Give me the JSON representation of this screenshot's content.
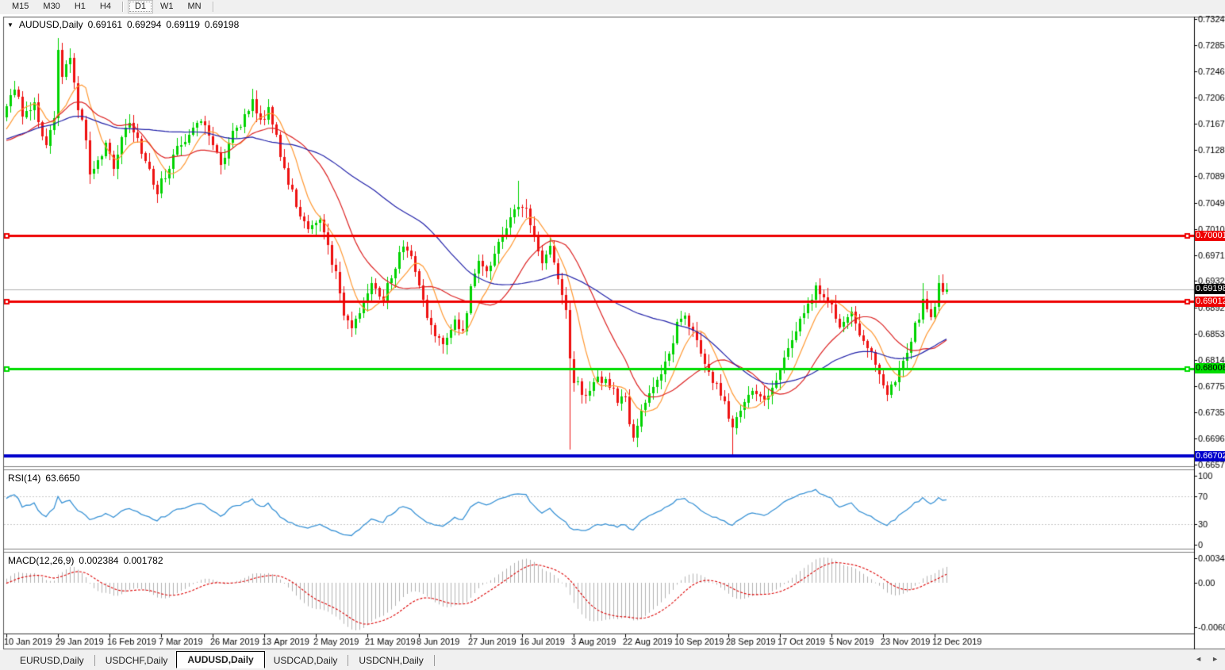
{
  "toolbar": {
    "buttons": [
      {
        "label": "M15",
        "active": false
      },
      {
        "label": "M30",
        "active": false
      },
      {
        "label": "H1",
        "active": false
      },
      {
        "label": "H4",
        "active": false
      },
      {
        "label": "D1",
        "active": true
      },
      {
        "label": "W1",
        "active": false
      },
      {
        "label": "MN",
        "active": false
      }
    ]
  },
  "chart": {
    "title": {
      "symbol_period": "AUDUSD,Daily",
      "open": "0.69161",
      "high": "0.69294",
      "low": "0.69119",
      "close": "0.69198"
    }
  },
  "price_axis": {
    "ticks": [
      "0.73240",
      "0.72850",
      "0.72460",
      "0.72060",
      "0.71670",
      "0.71280",
      "0.70890",
      "0.70490",
      "0.70100",
      "0.69710",
      "0.69320",
      "0.68920",
      "0.68530",
      "0.68140",
      "0.67750",
      "0.67350",
      "0.66960",
      "0.66570"
    ]
  },
  "x_axis": {
    "dates": [
      "10 Jan 2019",
      "29 Jan 2019",
      "16 Feb 2019",
      "7 Mar 2019",
      "26 Mar 2019",
      "13 Apr 2019",
      "2 May 2019",
      "21 May 2019",
      "8 Jun 2019",
      "27 Jun 2019",
      "16 Jul 2019",
      "3 Aug 2019",
      "22 Aug 2019",
      "10 Sep 2019",
      "28 Sep 2019",
      "17 Oct 2019",
      "5 Nov 2019",
      "23 Nov 2019",
      "12 Dec 2019"
    ]
  },
  "price_lines": [
    {
      "id": "resistance-upper",
      "price": "0.70001",
      "line_color": "#ee0000",
      "badge_bg": "#ee0000",
      "badge_fg": "#ffffff"
    },
    {
      "id": "current-price",
      "price": "0.69198",
      "line_color": "#b0b0b0",
      "badge_bg": "#000000",
      "badge_fg": "#ffffff"
    },
    {
      "id": "resistance-lower",
      "price": "0.69012",
      "line_color": "#ee0000",
      "badge_bg": "#ee0000",
      "badge_fg": "#ffffff"
    },
    {
      "id": "support",
      "price": "0.68008",
      "line_color": "#00dd00",
      "badge_bg": "#00dd00",
      "badge_fg": "#000000"
    },
    {
      "id": "year-low",
      "price": "0.66702",
      "line_color": "#0000cc",
      "badge_bg": "#0000cc",
      "badge_fg": "#ffffff"
    }
  ],
  "rsi": {
    "name": "RSI(14)",
    "value": "63.6650",
    "scale": [
      100,
      70,
      30,
      0
    ],
    "dashed_levels": [
      70,
      30
    ],
    "line_color": "#3a93d6"
  },
  "macd": {
    "name": "MACD(12,26,9)",
    "main_value": "0.002384",
    "signal_value": "0.001782",
    "scale": [
      {
        "label": "0.003421",
        "value": 0.003421
      },
      {
        "label": "0.00",
        "value": 0
      },
      {
        "label": "-0.006069",
        "value": -0.006069
      }
    ],
    "hist_color": "#b2b2b2",
    "signal_color": "#dd0000"
  },
  "tabs": {
    "items": [
      {
        "label": "EURUSD,Daily",
        "active": false
      },
      {
        "label": "USDCHF,Daily",
        "active": false
      },
      {
        "label": "AUDUSD,Daily",
        "active": true
      },
      {
        "label": "USDCAD,Daily",
        "active": false
      },
      {
        "label": "USDCNH,Daily",
        "active": false
      }
    ],
    "scroll_left_icon": "◄",
    "scroll_right_icon": "►"
  },
  "colors": {
    "candle_up": "#00d300",
    "candle_down": "#ee1111",
    "ma_fast": "#ff9933",
    "ma_mid": "#dd2222",
    "ma_slow": "#2323aa",
    "pane_bg": "#ffffff",
    "border": "#555555",
    "axis_line": "#000000",
    "grid_dash": "#c8c8c8"
  },
  "chart_data": {
    "type": "candlestick",
    "symbol": "AUDUSD",
    "timeframe": "Daily",
    "visible_range": {
      "first_label": "10 Jan 2019",
      "last_label": "12 Dec 2019"
    },
    "current_candle": {
      "open": 0.69161,
      "high": 0.69294,
      "low": 0.69119,
      "close": 0.69198
    },
    "rsi_current": 63.665,
    "macd_current": {
      "main": 0.002384,
      "signal": 0.001782
    },
    "horizontal_levels": [
      0.70001,
      0.69198,
      0.69012,
      0.68008,
      0.66702
    ],
    "moving_averages": [
      {
        "name": "fast",
        "period": 8,
        "color": "#ff9933"
      },
      {
        "name": "mid",
        "period": 20,
        "color": "#dd2222"
      },
      {
        "name": "slow",
        "period": 50,
        "color": "#2323aa"
      }
    ],
    "waypoints": [
      [
        -60,
        0.708
      ],
      [
        -50,
        0.713
      ],
      [
        -42,
        0.706
      ],
      [
        -34,
        0.715
      ],
      [
        -26,
        0.723
      ],
      [
        -18,
        0.716
      ],
      [
        -12,
        0.71
      ],
      [
        -6,
        0.714
      ],
      [
        -1,
        0.717
      ],
      [
        0,
        0.719
      ],
      [
        2,
        0.722
      ],
      [
        4,
        0.718
      ],
      [
        7,
        0.72
      ],
      [
        10,
        0.7135
      ],
      [
        12,
        0.718
      ],
      [
        13,
        0.7275
      ],
      [
        14,
        0.724
      ],
      [
        16,
        0.7262
      ],
      [
        18,
        0.719
      ],
      [
        20,
        0.715
      ],
      [
        21,
        0.7085
      ],
      [
        23,
        0.711
      ],
      [
        25,
        0.7135
      ],
      [
        27,
        0.71
      ],
      [
        29,
        0.7145
      ],
      [
        31,
        0.7165
      ],
      [
        33,
        0.714
      ],
      [
        35,
        0.711
      ],
      [
        38,
        0.7065
      ],
      [
        40,
        0.709
      ],
      [
        43,
        0.7125
      ],
      [
        46,
        0.715
      ],
      [
        49,
        0.7172
      ],
      [
        51,
        0.715
      ],
      [
        54,
        0.7105
      ],
      [
        56,
        0.714
      ],
      [
        59,
        0.7165
      ],
      [
        62,
        0.7195
      ],
      [
        64,
        0.7175
      ],
      [
        66,
        0.719
      ],
      [
        68,
        0.7145
      ],
      [
        70,
        0.71
      ],
      [
        73,
        0.7045
      ],
      [
        76,
        0.701
      ],
      [
        79,
        0.7025
      ],
      [
        81,
        0.698
      ],
      [
        83,
        0.6945
      ],
      [
        85,
        0.6885
      ],
      [
        87,
        0.6862
      ],
      [
        89,
        0.689
      ],
      [
        92,
        0.6925
      ],
      [
        95,
        0.6905
      ],
      [
        97,
        0.694
      ],
      [
        100,
        0.699
      ],
      [
        102,
        0.6962
      ],
      [
        104,
        0.692
      ],
      [
        106,
        0.688
      ],
      [
        108,
        0.6852
      ],
      [
        110,
        0.6835
      ],
      [
        113,
        0.6872
      ],
      [
        115,
        0.6855
      ],
      [
        117,
        0.692
      ],
      [
        119,
        0.6962
      ],
      [
        121,
        0.6945
      ],
      [
        124,
        0.6985
      ],
      [
        127,
        0.703
      ],
      [
        129,
        0.7048
      ],
      [
        131,
        0.7035
      ],
      [
        133,
        0.6998
      ],
      [
        135,
        0.6962
      ],
      [
        137,
        0.6978
      ],
      [
        139,
        0.6932
      ],
      [
        141,
        0.6885
      ],
      [
        142,
        0.681
      ],
      [
        143,
        0.6772
      ],
      [
        144,
        0.6778
      ],
      [
        146,
        0.6758
      ],
      [
        149,
        0.6788
      ],
      [
        152,
        0.6778
      ],
      [
        154,
        0.6758
      ],
      [
        156,
        0.6762
      ],
      [
        157,
        0.6718
      ],
      [
        158,
        0.6692
      ],
      [
        160,
        0.6738
      ],
      [
        163,
        0.6772
      ],
      [
        166,
        0.6812
      ],
      [
        169,
        0.6862
      ],
      [
        171,
        0.6882
      ],
      [
        174,
        0.6848
      ],
      [
        176,
        0.6812
      ],
      [
        179,
        0.6772
      ],
      [
        181,
        0.6742
      ],
      [
        183,
        0.6706
      ],
      [
        185,
        0.6738
      ],
      [
        188,
        0.6772
      ],
      [
        191,
        0.6752
      ],
      [
        193,
        0.6778
      ],
      [
        196,
        0.6812
      ],
      [
        199,
        0.6852
      ],
      [
        202,
        0.6895
      ],
      [
        204,
        0.692
      ],
      [
        206,
        0.6902
      ],
      [
        208,
        0.6892
      ],
      [
        210,
        0.6862
      ],
      [
        213,
        0.6882
      ],
      [
        215,
        0.6852
      ],
      [
        218,
        0.6822
      ],
      [
        220,
        0.6792
      ],
      [
        222,
        0.6762
      ],
      [
        224,
        0.6788
      ],
      [
        226,
        0.6812
      ],
      [
        228,
        0.6845
      ],
      [
        230,
        0.6878
      ],
      [
        231,
        0.6908
      ],
      [
        233,
        0.6882
      ],
      [
        234,
        0.6898
      ],
      [
        235,
        0.6922
      ],
      [
        236,
        0.69161
      ],
      [
        237,
        0.69198
      ]
    ],
    "overrides": {
      "13": {
        "high": 0.7295
      },
      "129": {
        "high": 0.7082
      },
      "142": {
        "low": 0.668
      },
      "183": {
        "low": 0.6671
      },
      "204": {
        "high": 0.693
      },
      "231": {
        "high": 0.6929
      },
      "237": {
        "open": 0.69161,
        "high": 0.69294,
        "low": 0.69119,
        "close": 0.69198
      }
    }
  }
}
